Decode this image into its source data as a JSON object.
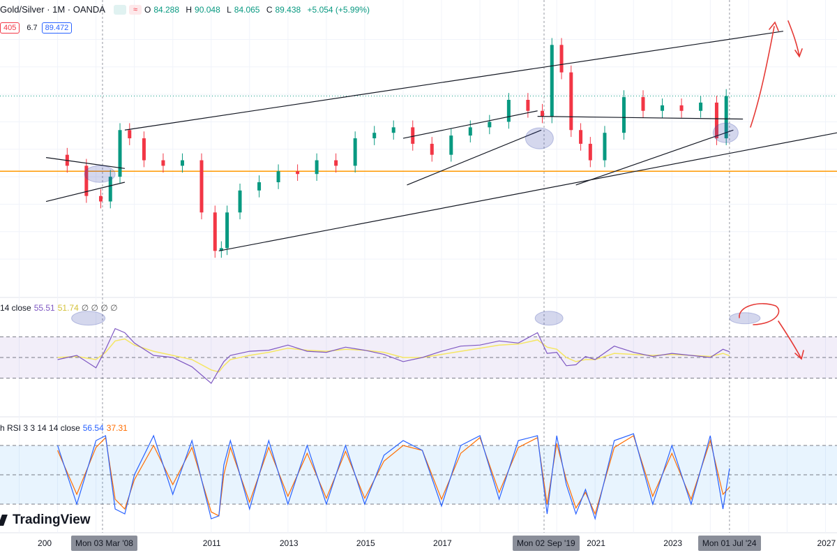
{
  "header": {
    "symbol": "Gold/Silver · 1M · OANDA",
    "ohlc": {
      "o_label": "O",
      "o": "84.288",
      "h_label": "H",
      "h": "90.048",
      "l_label": "L",
      "l": "84.065",
      "c_label": "C",
      "c": "89.438",
      "change": "+5.054 (+5.99%)"
    },
    "sub_values": [
      "405",
      "6.7",
      "89.472"
    ]
  },
  "rsi_legend": {
    "label": "14 close",
    "value1": "55.51",
    "value2": "51.74",
    "extras": "∅ ∅ ∅ ∅"
  },
  "stoch_legend": {
    "label": "h RSI 3 3 14 14 close",
    "k": "56.54",
    "d": "37.31"
  },
  "x_axis": {
    "labels": [
      {
        "text": "200",
        "year": 2006.7
      },
      {
        "text": "9",
        "year": 2009.05
      },
      {
        "text": "2011",
        "year": 2011
      },
      {
        "text": "2013",
        "year": 2013
      },
      {
        "text": "2015",
        "year": 2015
      },
      {
        "text": "2017",
        "year": 2017
      },
      {
        "text": "2021",
        "year": 2021
      },
      {
        "text": "2023",
        "year": 2023
      },
      {
        "text": "2027",
        "year": 2027
      }
    ],
    "tags": [
      {
        "text": "Mon 03 Mar '08",
        "year": 2008.17
      },
      {
        "text": "Mon 02 Sep '19",
        "year": 2019.67
      },
      {
        "text": "Mon 01 Jul '24",
        "year": 2024.5
      }
    ]
  },
  "branding": {
    "logo": "TradingView"
  },
  "colors": {
    "up": "#089981",
    "down": "#f23645",
    "rsi": "#7e57c2",
    "rsi_ma": "#f5e663",
    "stoch_k": "#2962ff",
    "stoch_d": "#ff6d00",
    "level": "#ff9800",
    "annotation": "#e53935",
    "highlight": "#3949ab"
  },
  "chart_data": {
    "type": "candlestick",
    "x": [
      2007.0,
      2007.5,
      2008.0,
      2008.25,
      2008.5,
      2008.75,
      2009.0,
      2009.5,
      2010.0,
      2010.5,
      2011.0,
      2011.2,
      2011.33,
      2011.5,
      2012.0,
      2012.5,
      2013.0,
      2013.5,
      2014.0,
      2014.5,
      2015.0,
      2015.5,
      2016.0,
      2016.5,
      2017.0,
      2017.5,
      2018.0,
      2018.5,
      2019.0,
      2019.5,
      2019.75,
      2020.0,
      2020.25,
      2020.5,
      2020.75,
      2021.0,
      2021.5,
      2022.0,
      2022.5,
      2023.0,
      2023.5,
      2024.0,
      2024.33,
      2024.5
    ],
    "close": [
      68,
      64,
      53,
      51,
      60,
      77,
      74,
      66,
      64,
      66,
      47,
      33,
      34,
      47,
      55,
      58,
      62,
      61,
      66,
      64,
      74,
      76,
      78,
      72,
      68,
      75,
      78,
      80,
      88,
      84,
      82,
      108,
      98,
      77,
      72,
      66,
      76,
      89,
      84,
      86,
      84,
      87,
      74,
      89.4
    ],
    "series": [
      {
        "name": "RSI",
        "values": [
          48,
          52,
          40,
          58,
          78,
          74,
          64,
          52,
          50,
          41,
          25,
          38,
          46,
          52,
          56,
          57,
          62,
          56,
          55,
          60,
          57,
          53,
          46,
          50,
          56,
          61,
          62,
          66,
          64,
          74,
          54,
          55,
          42,
          43,
          51,
          48,
          61,
          55,
          51,
          54,
          52,
          50,
          58,
          55.51
        ]
      },
      {
        "name": "RSI MA",
        "values": [
          50,
          51,
          48,
          55,
          66,
          68,
          62,
          56,
          52,
          48,
          38,
          36,
          42,
          48,
          52,
          55,
          59,
          57,
          56,
          58,
          57,
          55,
          50,
          50,
          53,
          56,
          59,
          62,
          63,
          67,
          60,
          58,
          50,
          46,
          48,
          48,
          54,
          53,
          52,
          53,
          52,
          51,
          54,
          51.74
        ]
      },
      {
        "name": "Stoch %K",
        "values": [
          80,
          20,
          85,
          90,
          15,
          10,
          50,
          90,
          30,
          85,
          5,
          8,
          60,
          85,
          15,
          85,
          20,
          80,
          20,
          80,
          20,
          70,
          85,
          75,
          18,
          80,
          90,
          25,
          85,
          90,
          10,
          90,
          40,
          10,
          35,
          5,
          85,
          92,
          20,
          80,
          20,
          90,
          15,
          56.54
        ]
      },
      {
        "name": "Stoch %D",
        "values": [
          75,
          30,
          78,
          88,
          25,
          15,
          45,
          80,
          40,
          78,
          12,
          8,
          50,
          78,
          22,
          78,
          28,
          72,
          26,
          74,
          26,
          64,
          80,
          75,
          25,
          72,
          88,
          32,
          78,
          88,
          20,
          82,
          45,
          16,
          32,
          10,
          78,
          90,
          28,
          72,
          25,
          85,
          30,
          37.31
        ]
      }
    ],
    "price_range": [
      28,
      118
    ],
    "price_level": 62,
    "rsi_bands": [
      30,
      50,
      70
    ],
    "stoch_bands": [
      20,
      50,
      80
    ],
    "x_range": [
      2005.5,
      2027.3
    ],
    "grid": true
  }
}
